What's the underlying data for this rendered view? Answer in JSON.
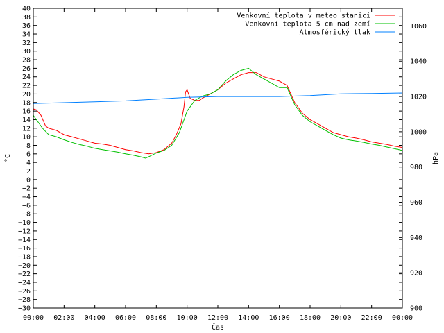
{
  "chart_data": {
    "type": "line",
    "xlabel": "Čas",
    "ylabel": "°C",
    "y2label": "hPa",
    "x_ticks": [
      "00:00",
      "02:00",
      "04:00",
      "06:00",
      "08:00",
      "10:00",
      "12:00",
      "14:00",
      "16:00",
      "18:00",
      "20:00",
      "22:00",
      "00:00"
    ],
    "xlim": [
      0,
      24
    ],
    "ylim": [
      -30,
      40
    ],
    "y_step": 2,
    "y2lim": [
      900,
      1070
    ],
    "y2_ticks": [
      900,
      920,
      940,
      960,
      980,
      1000,
      1020,
      1040,
      1060
    ],
    "grid": false,
    "legend_position": "top-right",
    "series": [
      {
        "name": "Venkovní teplota v meteo stanici",
        "color": "#ff0000",
        "axis": "left",
        "x": [
          0,
          0.2,
          0.5,
          0.8,
          1,
          1.5,
          2,
          2.5,
          3,
          3.5,
          4,
          4.5,
          5,
          5.5,
          6,
          6.5,
          7,
          7.5,
          8,
          8.5,
          9,
          9.3,
          9.6,
          9.8,
          9.9,
          10,
          10.2,
          10.5,
          10.8,
          11,
          11.5,
          12,
          12.5,
          13,
          13.5,
          14,
          14.5,
          15,
          15.5,
          16,
          16.5,
          17,
          17.5,
          18,
          18.5,
          19,
          19.5,
          20,
          20.5,
          21,
          21.5,
          22,
          22.5,
          23,
          23.5,
          24
        ],
        "y": [
          16.5,
          16.3,
          15,
          12.5,
          12,
          11.5,
          10.5,
          10,
          9.5,
          9,
          8.5,
          8.3,
          8,
          7.5,
          7,
          6.7,
          6.3,
          6,
          6.3,
          7,
          8.5,
          10.5,
          13,
          17,
          20.5,
          21,
          19,
          18.5,
          18.5,
          19,
          20,
          21,
          22.5,
          23.5,
          24.5,
          25,
          25,
          24,
          23.5,
          23,
          22,
          18,
          15.5,
          14,
          13,
          12,
          11,
          10.5,
          10,
          9.7,
          9.3,
          8.8,
          8.5,
          8.2,
          7.8,
          7.5
        ]
      },
      {
        "name": "Venkovní teplota 5 cm nad zemí",
        "color": "#00c000",
        "axis": "left",
        "x": [
          0,
          0.3,
          0.6,
          1,
          1.5,
          2,
          2.5,
          3,
          3.5,
          4,
          4.5,
          5,
          5.5,
          6,
          6.5,
          7,
          7.3,
          7.6,
          8,
          8.5,
          9,
          9.5,
          10,
          10.5,
          11,
          11.5,
          12,
          12.5,
          13,
          13.5,
          14,
          14.5,
          15,
          15.5,
          16,
          16.5,
          17,
          17.5,
          18,
          18.5,
          19,
          19.5,
          20,
          20.5,
          21,
          21.5,
          22,
          22.5,
          23,
          23.5,
          24
        ],
        "y": [
          15,
          13.5,
          12,
          10.5,
          10,
          9.3,
          8.7,
          8.2,
          7.8,
          7.3,
          7,
          6.7,
          6.4,
          6,
          5.7,
          5.3,
          5,
          5.5,
          6.2,
          6.8,
          8,
          11,
          16,
          18.5,
          19.5,
          20,
          21,
          23,
          24.5,
          25.5,
          26,
          24.5,
          23.5,
          22.5,
          21.5,
          21.5,
          17.5,
          15,
          13.5,
          12.5,
          11.5,
          10.5,
          9.7,
          9.3,
          9,
          8.7,
          8.3,
          8,
          7.6,
          7.2,
          6.8
        ]
      },
      {
        "name": "Atmosférický tlak",
        "color": "#0080ff",
        "axis": "right",
        "x": [
          0,
          2,
          4,
          6,
          8,
          10,
          12,
          14,
          16,
          18,
          19,
          20,
          22,
          24
        ],
        "y": [
          1016,
          1016.5,
          1017,
          1017.5,
          1018.5,
          1019.5,
          1020,
          1020,
          1020,
          1020.5,
          1021,
          1021.5,
          1021.7,
          1022
        ]
      }
    ]
  }
}
